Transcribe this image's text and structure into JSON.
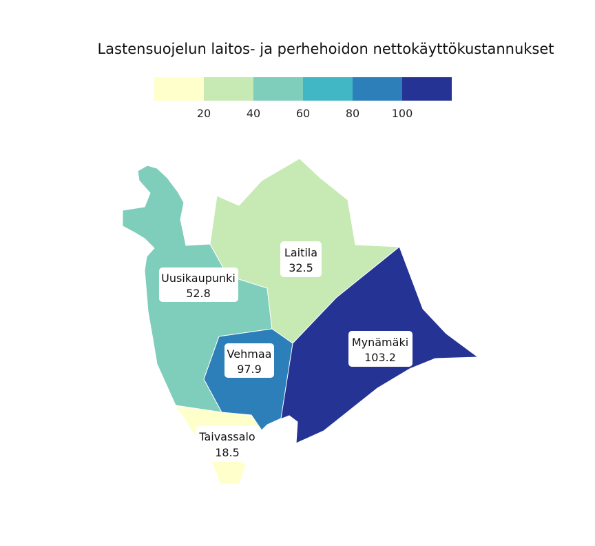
{
  "title": "Lastensuojelun laitos- ja perhehoidon nettokäyttökustannukset",
  "legend": {
    "type": "stepped-colorbar",
    "ticks": [
      "20",
      "40",
      "60",
      "80",
      "100"
    ],
    "bins": [
      {
        "from": 0,
        "to": 20,
        "color": "#ffffcc"
      },
      {
        "from": 20,
        "to": 40,
        "color": "#c7e9b4"
      },
      {
        "from": 40,
        "to": 60,
        "color": "#7fcdbb"
      },
      {
        "from": 60,
        "to": 80,
        "color": "#41b6c4"
      },
      {
        "from": 80,
        "to": 100,
        "color": "#2c7fb8"
      },
      {
        "from": 100,
        "to": 120,
        "color": "#253494"
      }
    ]
  },
  "regions": [
    {
      "key": "uusikaupunki",
      "name": "Uusikaupunki",
      "value": "52.8",
      "color": "#7fcdbb"
    },
    {
      "key": "laitila",
      "name": "Laitila",
      "value": "32.5",
      "color": "#c7e9b4"
    },
    {
      "key": "mynamaki",
      "name": "Mynämäki",
      "value": "103.2",
      "color": "#253494"
    },
    {
      "key": "vehmaa",
      "name": "Vehmaa",
      "value": "97.9",
      "color": "#2c7fb8"
    },
    {
      "key": "taivassalo",
      "name": "Taivassalo",
      "value": "18.5",
      "color": "#ffffcc"
    }
  ]
}
